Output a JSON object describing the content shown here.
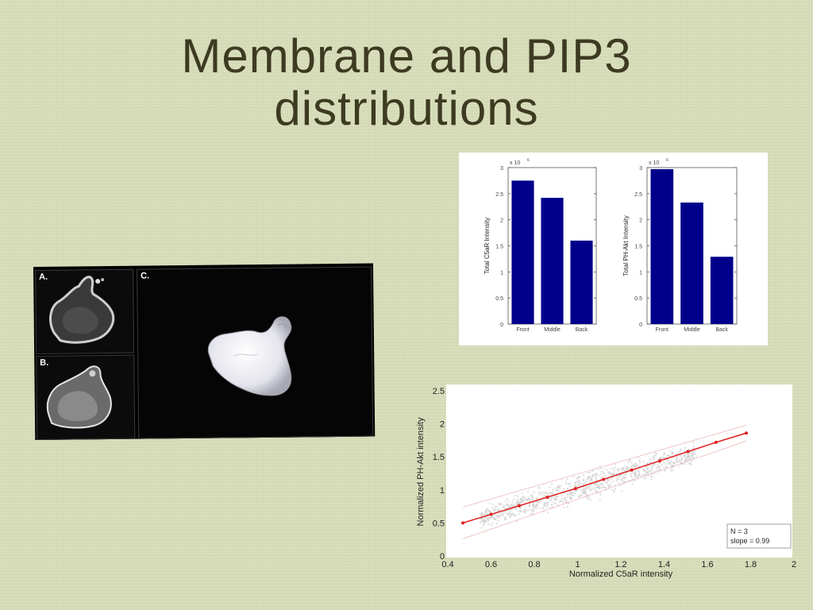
{
  "slide": {
    "title_line1": "Membrane and PIP3",
    "title_line2": "distributions"
  },
  "micrograph": {
    "label_a": "A.",
    "label_b": "B.",
    "label_c": "C."
  },
  "colors": {
    "background": "#d6dcb8",
    "title": "#3d3a22",
    "bar_fill": "#00008b",
    "fit_line": "#e02020",
    "scatter_cloud": "#c8c8c8"
  },
  "chart_data": [
    {
      "type": "bar",
      "categories": [
        "Front",
        "Middle",
        "Back"
      ],
      "values": [
        2.75,
        2.42,
        1.6
      ],
      "multiplier": "x 10",
      "exponent": "6",
      "ylabel": "Total C5aR Intensity",
      "xlabel": "",
      "ylim": [
        0,
        3
      ],
      "yticks": [
        "0",
        "0.5",
        "1",
        "1.5",
        "2",
        "2.5",
        "3"
      ],
      "grid": false
    },
    {
      "type": "bar",
      "categories": [
        "Front",
        "Middle",
        "Back"
      ],
      "values": [
        2.97,
        2.33,
        1.29
      ],
      "multiplier": "x 10",
      "exponent": "6",
      "ylabel": "Total PH-Akt Intensity",
      "xlabel": "",
      "ylim": [
        0,
        3
      ],
      "yticks": [
        "0",
        "0.5",
        "1",
        "1.5",
        "2",
        "2.5",
        "3"
      ],
      "grid": false
    },
    {
      "type": "scatter",
      "xlabel": "Normalized C5aR intensity",
      "ylabel": "Normalized PH-Akt intensity",
      "xlim": [
        0.4,
        2
      ],
      "ylim": [
        0,
        2.5
      ],
      "xticks": [
        "0.4",
        "0.6",
        "0.8",
        "1",
        "1.2",
        "1.4",
        "1.6",
        "1.8",
        "2"
      ],
      "yticks": [
        "0",
        "0.5",
        "1",
        "1.5",
        "2",
        "2.5"
      ],
      "series": [
        {
          "x": [
            0.47,
            0.6,
            0.73,
            0.86,
            0.99,
            1.12,
            1.25,
            1.38,
            1.51,
            1.64,
            1.78
          ],
          "y": [
            0.5,
            0.63,
            0.76,
            0.89,
            1.02,
            1.16,
            1.3,
            1.44,
            1.58,
            1.72,
            1.86
          ]
        }
      ],
      "annotation_n": "N = 3",
      "annotation_slope": "slope = 0.99"
    }
  ]
}
